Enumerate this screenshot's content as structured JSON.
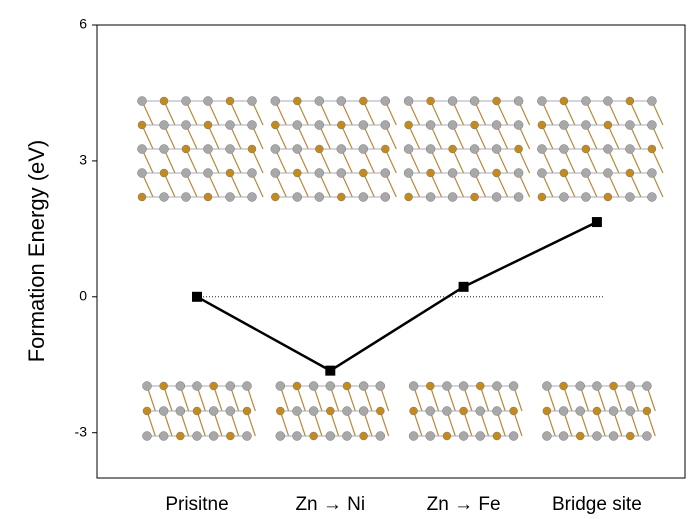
{
  "chart_data": {
    "type": "line",
    "y_label": "Formation Energy (eV)",
    "categories": [
      "Prisitne",
      "Zn → Ni",
      "Zn → Fe",
      "Bridge site"
    ],
    "values": [
      0,
      -1.63,
      0.22,
      1.65
    ],
    "color": "#000000",
    "ylim": [
      -4,
      6
    ],
    "yticks": [
      -3,
      0,
      3,
      6
    ],
    "reference_line": 0
  }
}
